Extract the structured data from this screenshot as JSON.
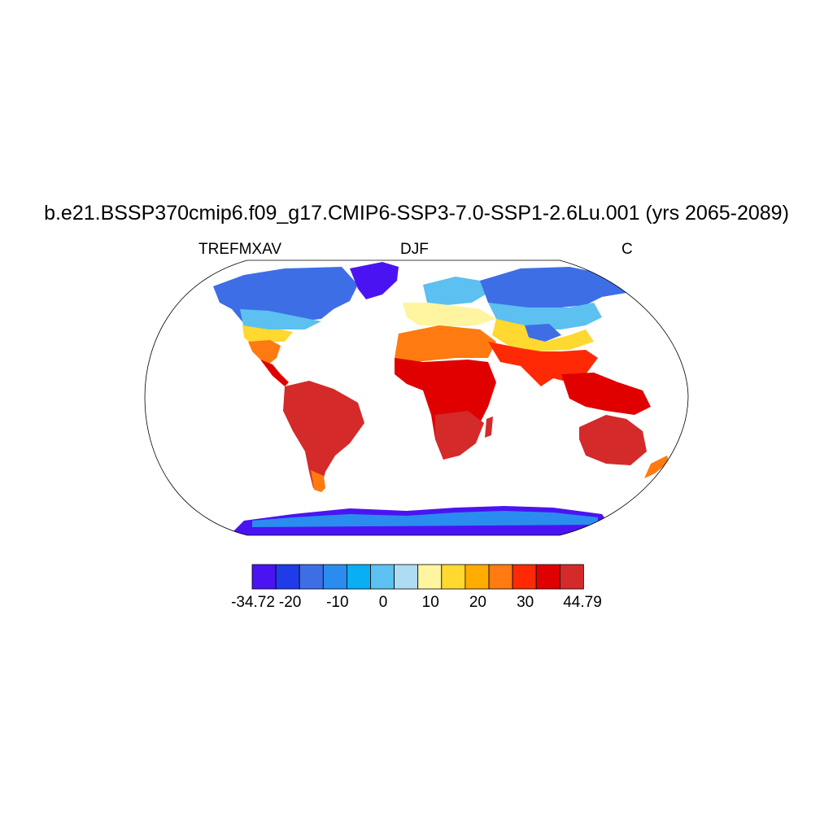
{
  "title": "b.e21.BSSP370cmip6.f09_g17.CMIP6-SSP3-7.0-SSP1-2.6Lu.001 (yrs 2065-2089)",
  "left_label": "TREFMXAV",
  "center_label": "DJF",
  "right_label": "C",
  "colorbar": {
    "colors": [
      "#4a14f2",
      "#1f3ce8",
      "#3d6ee6",
      "#2b8cf0",
      "#0aaef5",
      "#5cc0f0",
      "#aedcf2",
      "#fff5a0",
      "#ffd830",
      "#ffab00",
      "#ff7a10",
      "#ff2a05",
      "#e00000",
      "#d42a2a"
    ],
    "tick_labels": [
      "-34.72",
      "-20",
      "-10",
      "0",
      "10",
      "20",
      "30",
      "44.79"
    ]
  }
}
